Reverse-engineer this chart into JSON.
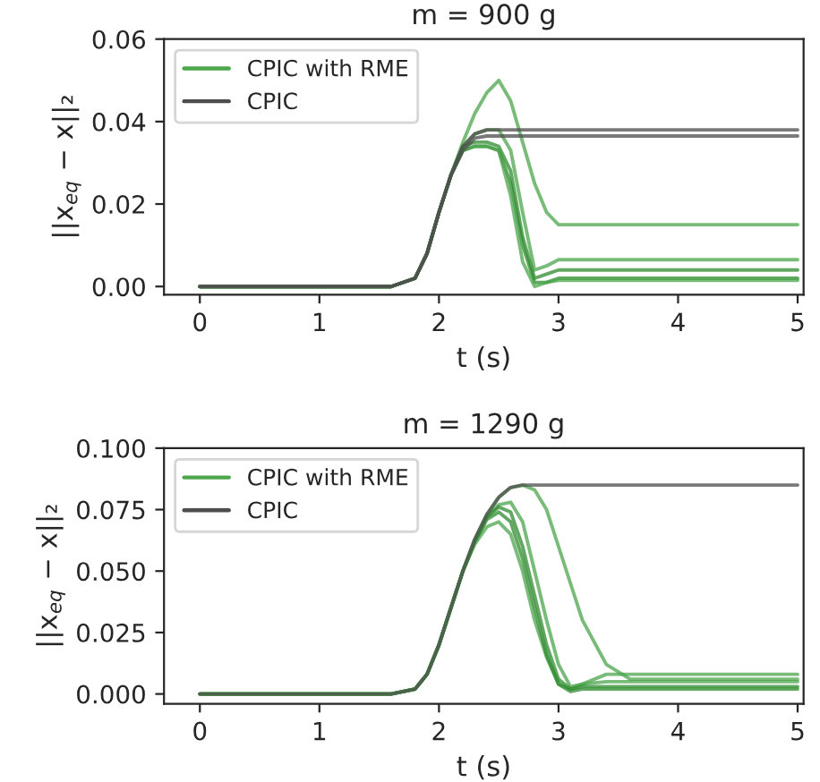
{
  "chart_data": [
    {
      "type": "line",
      "title": "m = 900 g",
      "xlabel": "t (s)",
      "ylabel": "||x$_{eq}$ − x||₂",
      "x": [
        0,
        1,
        1.6,
        1.8,
        1.9,
        2.0,
        2.1,
        2.2,
        2.3,
        2.4,
        2.5,
        2.6,
        2.7,
        2.8,
        2.9,
        3.0,
        3.2,
        4,
        5
      ],
      "series": [
        {
          "name": "CPIC with RME",
          "color": "#4ca64c",
          "values": [
            0,
            0,
            0,
            0.002,
            0.008,
            0.018,
            0.027,
            0.035,
            0.042,
            0.047,
            0.05,
            0.045,
            0.035,
            0.025,
            0.018,
            0.015,
            0.015,
            0.015,
            0.015
          ]
        },
        {
          "color": "#4ca64c",
          "values": [
            0,
            0,
            0,
            0.002,
            0.008,
            0.018,
            0.027,
            0.034,
            0.037,
            0.038,
            0.038,
            0.033,
            0.018,
            0.004,
            0.005,
            0.0065,
            0.0065,
            0.0065,
            0.0065
          ]
        },
        {
          "color": "#2e8b2e",
          "values": [
            0,
            0,
            0,
            0.002,
            0.008,
            0.018,
            0.027,
            0.034,
            0.035,
            0.035,
            0.034,
            0.028,
            0.012,
            0.002,
            0.003,
            0.004,
            0.004,
            0.004,
            0.004
          ]
        },
        {
          "color": "#2e8b2e",
          "values": [
            0,
            0,
            0,
            0.002,
            0.008,
            0.018,
            0.027,
            0.033,
            0.034,
            0.034,
            0.033,
            0.025,
            0.01,
            0.001,
            0.001,
            0.002,
            0.002,
            0.002,
            0.002
          ]
        },
        {
          "color": "#4ca64c",
          "values": [
            0,
            0,
            0,
            0.002,
            0.008,
            0.018,
            0.027,
            0.033,
            0.034,
            0.034,
            0.033,
            0.022,
            0.006,
            0,
            0.001,
            0.0015,
            0.0015,
            0.0015,
            0.0015
          ]
        },
        {
          "name": "CPIC",
          "color": "#4d4d4d",
          "values": [
            0,
            0,
            0,
            0.002,
            0.008,
            0.018,
            0.027,
            0.034,
            0.037,
            0.038,
            0.038,
            0.038,
            0.038,
            0.038,
            0.038,
            0.038,
            0.038,
            0.038,
            0.038
          ]
        },
        {
          "color": "#4d4d4d",
          "values": [
            0,
            0,
            0,
            0.002,
            0.008,
            0.018,
            0.027,
            0.033,
            0.036,
            0.0365,
            0.0365,
            0.0365,
            0.0365,
            0.0365,
            0.0365,
            0.0365,
            0.0365,
            0.0365,
            0.0365
          ]
        }
      ],
      "xlim": [
        -0.3,
        5.05
      ],
      "xticks": [
        0,
        1,
        2,
        3,
        4,
        5
      ],
      "ylim": [
        -0.002,
        0.06
      ],
      "yticks": [
        {
          "value": 0,
          "label": "0.00"
        },
        {
          "value": 0.02,
          "label": "0.02"
        },
        {
          "value": 0.04,
          "label": "0.04"
        },
        {
          "value": 0.06,
          "label": "0.06"
        }
      ],
      "legend": "top left"
    },
    {
      "type": "line",
      "title": "m = 1290 g",
      "xlabel": "t (s)",
      "ylabel": "||x$_{eq}$ − x||₂",
      "x": [
        0,
        1,
        1.6,
        1.8,
        1.9,
        2.0,
        2.1,
        2.2,
        2.3,
        2.4,
        2.5,
        2.6,
        2.7,
        2.8,
        2.9,
        3.0,
        3.1,
        3.2,
        3.4,
        3.6,
        4,
        5
      ],
      "series": [
        {
          "name": "CPIC with RME",
          "color": "#4ca64c",
          "values": [
            0,
            0,
            0,
            0.002,
            0.008,
            0.02,
            0.035,
            0.05,
            0.062,
            0.072,
            0.077,
            0.078,
            0.07,
            0.05,
            0.03,
            0.012,
            0.003,
            0.004,
            0.008,
            0.008,
            0.008,
            0.008
          ]
        },
        {
          "color": "#4ca64c",
          "values": [
            0,
            0,
            0,
            0.002,
            0.008,
            0.02,
            0.035,
            0.05,
            0.061,
            0.068,
            0.07,
            0.065,
            0.05,
            0.03,
            0.015,
            0.004,
            0.002,
            0.004,
            0.005,
            0.005,
            0.005,
            0.005
          ]
        },
        {
          "color": "#2e8b2e",
          "values": [
            0,
            0,
            0,
            0.002,
            0.008,
            0.02,
            0.035,
            0.05,
            0.062,
            0.072,
            0.076,
            0.074,
            0.06,
            0.04,
            0.02,
            0.006,
            0.002,
            0.003,
            0.003,
            0.003,
            0.003,
            0.003
          ]
        },
        {
          "color": "#2e8b2e",
          "values": [
            0,
            0,
            0,
            0.002,
            0.008,
            0.02,
            0.035,
            0.05,
            0.062,
            0.071,
            0.074,
            0.07,
            0.055,
            0.035,
            0.016,
            0.004,
            0.001,
            0.002,
            0.002,
            0.002,
            0.002,
            0.002
          ]
        },
        {
          "color": "#4ca64c",
          "values": [
            0,
            0,
            0,
            0.002,
            0.008,
            0.02,
            0.035,
            0.05,
            0.063,
            0.073,
            0.08,
            0.084,
            0.085,
            0.083,
            0.075,
            0.06,
            0.045,
            0.03,
            0.012,
            0.006,
            0.006,
            0.006
          ]
        },
        {
          "name": "CPIC",
          "color": "#4d4d4d",
          "values": [
            0,
            0,
            0,
            0.002,
            0.008,
            0.02,
            0.035,
            0.05,
            0.063,
            0.073,
            0.08,
            0.084,
            0.085,
            0.085,
            0.085,
            0.085,
            0.085,
            0.085,
            0.085,
            0.085,
            0.085,
            0.085
          ]
        }
      ],
      "xlim": [
        -0.3,
        5.05
      ],
      "xticks": [
        0,
        1,
        2,
        3,
        4,
        5
      ],
      "ylim": [
        -0.004,
        0.1
      ],
      "yticks": [
        {
          "value": 0,
          "label": "0.000"
        },
        {
          "value": 0.025,
          "label": "0.025"
        },
        {
          "value": 0.05,
          "label": "0.050"
        },
        {
          "value": 0.075,
          "label": "0.075"
        },
        {
          "value": 0.1,
          "label": "0.100"
        }
      ],
      "legend": "top left"
    }
  ]
}
